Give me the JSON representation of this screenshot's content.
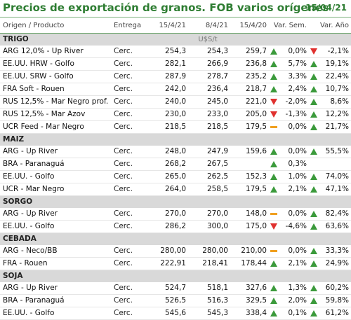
{
  "title": "Precios de exportación de granos. FOB varios orígenes",
  "date": "15/04/21",
  "headers": [
    "Origen / Producto",
    "Entrega",
    "15/4/21",
    "8/4/21",
    "15/4/20",
    "Var. Sem.",
    "Var. Año"
  ],
  "sections": [
    {
      "name": "TRIGO",
      "unit": "U$S/t",
      "rows": [
        {
          "product": "ARG 12,0% - Up River",
          "entrega": "Cerc.",
          "v1": "254,3",
          "v2": "254,3",
          "v3": "259,7",
          "i1": "up",
          "vs": "0,0%",
          "i2": "down",
          "va": "-2,1%"
        },
        {
          "product": "EE.UU. HRW - Golfo",
          "entrega": "Cerc.",
          "v1": "282,1",
          "v2": "266,9",
          "v3": "236,8",
          "i1": "up",
          "vs": "5,7%",
          "i2": "up",
          "va": "19,1%"
        },
        {
          "product": "EE.UU. SRW - Golfo",
          "entrega": "Cerc.",
          "v1": "287,9",
          "v2": "278,7",
          "v3": "235,2",
          "i1": "up",
          "vs": "3,3%",
          "i2": "up",
          "va": "22,4%"
        },
        {
          "product": "FRA Soft - Rouen",
          "entrega": "Cerc.",
          "v1": "242,0",
          "v2": "236,4",
          "v3": "218,7",
          "i1": "up",
          "vs": "2,4%",
          "i2": "up",
          "va": "10,7%"
        },
        {
          "product": "RUS 12,5% - Mar Negro prof.",
          "entrega": "Cerc.",
          "v1": "240,0",
          "v2": "245,0",
          "v3": "221,0",
          "i1": "down",
          "vs": "-2,0%",
          "i2": "up",
          "va": "8,6%"
        },
        {
          "product": "RUS 12,5% - Mar Azov",
          "entrega": "Cerc.",
          "v1": "230,0",
          "v2": "233,0",
          "v3": "205,0",
          "i1": "down",
          "vs": "-1,3%",
          "i2": "up",
          "va": "12,2%"
        },
        {
          "product": "UCR Feed - Mar Negro",
          "entrega": "Cerc.",
          "v1": "218,5",
          "v2": "218,5",
          "v3": "179,5",
          "i1": "eq",
          "vs": "0,0%",
          "i2": "up",
          "va": "21,7%"
        }
      ]
    },
    {
      "name": "MAIZ",
      "unit": "",
      "rows": [
        {
          "product": "ARG - Up River",
          "entrega": "Cerc.",
          "v1": "248,0",
          "v2": "247,9",
          "v3": "159,6",
          "i1": "up",
          "vs": "0,0%",
          "i2": "up",
          "va": "55,5%"
        },
        {
          "product": "BRA - Paranaguá",
          "entrega": "Cerc.",
          "v1": "268,2",
          "v2": "267,5",
          "v3": "",
          "i1": "up",
          "vs": "0,3%",
          "i2": "",
          "va": ""
        },
        {
          "product": "EE.UU. - Golfo",
          "entrega": "Cerc.",
          "v1": "265,0",
          "v2": "262,5",
          "v3": "152,3",
          "i1": "up",
          "vs": "1,0%",
          "i2": "up",
          "va": "74,0%"
        },
        {
          "product": "UCR - Mar Negro",
          "entrega": "Cerc.",
          "v1": "264,0",
          "v2": "258,5",
          "v3": "179,5",
          "i1": "up",
          "vs": "2,1%",
          "i2": "up",
          "va": "47,1%"
        }
      ]
    },
    {
      "name": "SORGO",
      "unit": "",
      "rows": [
        {
          "product": "ARG - Up River",
          "entrega": "Cerc.",
          "v1": "270,0",
          "v2": "270,0",
          "v3": "148,0",
          "i1": "eq",
          "vs": "0,0%",
          "i2": "up",
          "va": "82,4%"
        },
        {
          "product": "EE.UU. - Golfo",
          "entrega": "Cerc.",
          "v1": "286,2",
          "v2": "300,0",
          "v3": "175,0",
          "i1": "down",
          "vs": "-4,6%",
          "i2": "up",
          "va": "63,6%"
        }
      ]
    },
    {
      "name": "CEBADA",
      "unit": "",
      "rows": [
        {
          "product": "ARG - Neco/BB",
          "entrega": "Cerc.",
          "v1": "280,00",
          "v2": "280,00",
          "v3": "210,00",
          "i1": "eq",
          "vs": "0,0%",
          "i2": "up",
          "va": "33,3%"
        },
        {
          "product": "FRA - Rouen",
          "entrega": "Cerc.",
          "v1": "222,91",
          "v2": "218,41",
          "v3": "178,44",
          "i1": "up",
          "vs": "2,1%",
          "i2": "up",
          "va": "24,9%"
        }
      ]
    },
    {
      "name": "SOJA",
      "unit": "",
      "rows": [
        {
          "product": "ARG - Up River",
          "entrega": "Cerc.",
          "v1": "524,7",
          "v2": "518,1",
          "v3": "327,6",
          "i1": "up",
          "vs": "1,3%",
          "i2": "up",
          "va": "60,2%"
        },
        {
          "product": "BRA - Paranaguá",
          "entrega": "Cerc.",
          "v1": "526,5",
          "v2": "516,3",
          "v3": "329,5",
          "i1": "up",
          "vs": "2,0%",
          "i2": "up",
          "va": "59,8%"
        },
        {
          "product": "EE.UU. - Golfo",
          "entrega": "Cerc.",
          "v1": "545,6",
          "v2": "545,3",
          "v3": "338,4",
          "i1": "up",
          "vs": "0,1%",
          "i2": "up",
          "va": "61,2%"
        }
      ]
    }
  ]
}
